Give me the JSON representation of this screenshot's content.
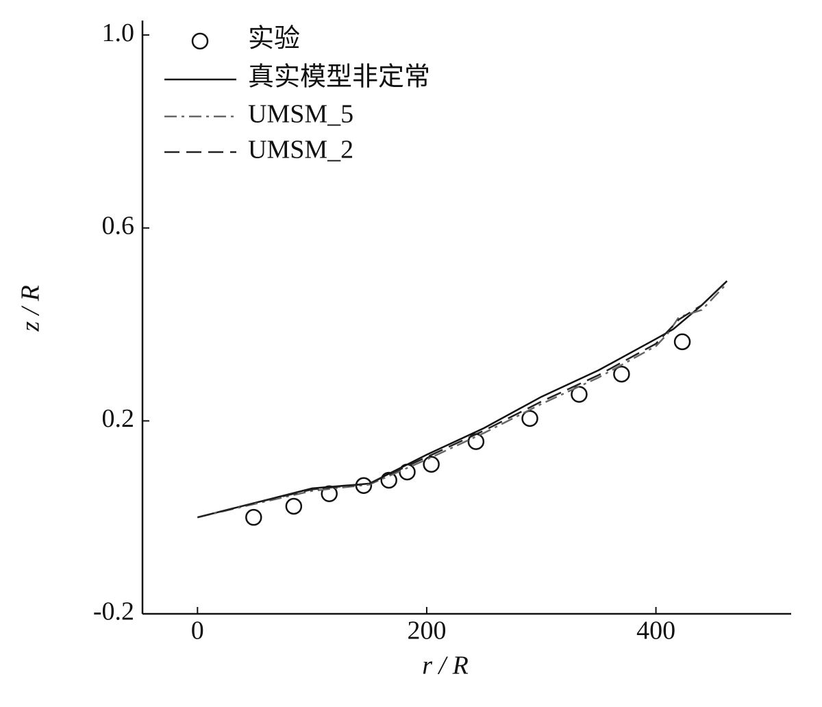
{
  "chart_data": {
    "type": "line",
    "x_label": "r / R",
    "y_label": "z / R",
    "xlim": [
      -48,
      518
    ],
    "ylim": [
      -0.2,
      1.03
    ],
    "xticks": [
      0,
      200,
      400
    ],
    "yticks": [
      -0.2,
      0.2,
      0.6,
      {
        "value": 1,
        "label": "1.0"
      }
    ],
    "series": [
      {
        "name": "实验",
        "style": "marker",
        "color": "#111111",
        "x": [
          49,
          84,
          115,
          145,
          167,
          183,
          204,
          243,
          290,
          333,
          370,
          423
        ],
        "values": [
          0.0,
          0.023,
          0.049,
          0.066,
          0.077,
          0.094,
          0.11,
          0.157,
          0.205,
          0.255,
          0.297,
          0.364
        ]
      },
      {
        "name": "真实模型非定常",
        "style": "solid",
        "color": "#111111",
        "x": [
          0,
          50,
          100,
          150,
          200,
          250,
          300,
          350,
          400,
          415,
          440,
          462
        ],
        "values": [
          0.0,
          0.03,
          0.06,
          0.07,
          0.13,
          0.185,
          0.25,
          0.305,
          0.37,
          0.39,
          0.44,
          0.49
        ]
      },
      {
        "name": "UMSM_5",
        "style": "dashdot",
        "color": "#666666",
        "x": [
          0,
          50,
          100,
          150,
          200,
          250,
          300,
          350,
          400,
          410,
          420,
          440,
          462
        ],
        "values": [
          0.0,
          0.028,
          0.055,
          0.068,
          0.12,
          0.175,
          0.235,
          0.29,
          0.355,
          0.38,
          0.415,
          0.43,
          0.485
        ]
      },
      {
        "name": "UMSM_2",
        "style": "dashed",
        "color": "#222222",
        "x": [
          0,
          50,
          100,
          150,
          200,
          250,
          300,
          350,
          400,
          410,
          420,
          440,
          462
        ],
        "values": [
          0.0,
          0.03,
          0.058,
          0.07,
          0.125,
          0.18,
          0.24,
          0.295,
          0.36,
          0.385,
          0.41,
          0.44,
          0.49
        ]
      }
    ]
  }
}
